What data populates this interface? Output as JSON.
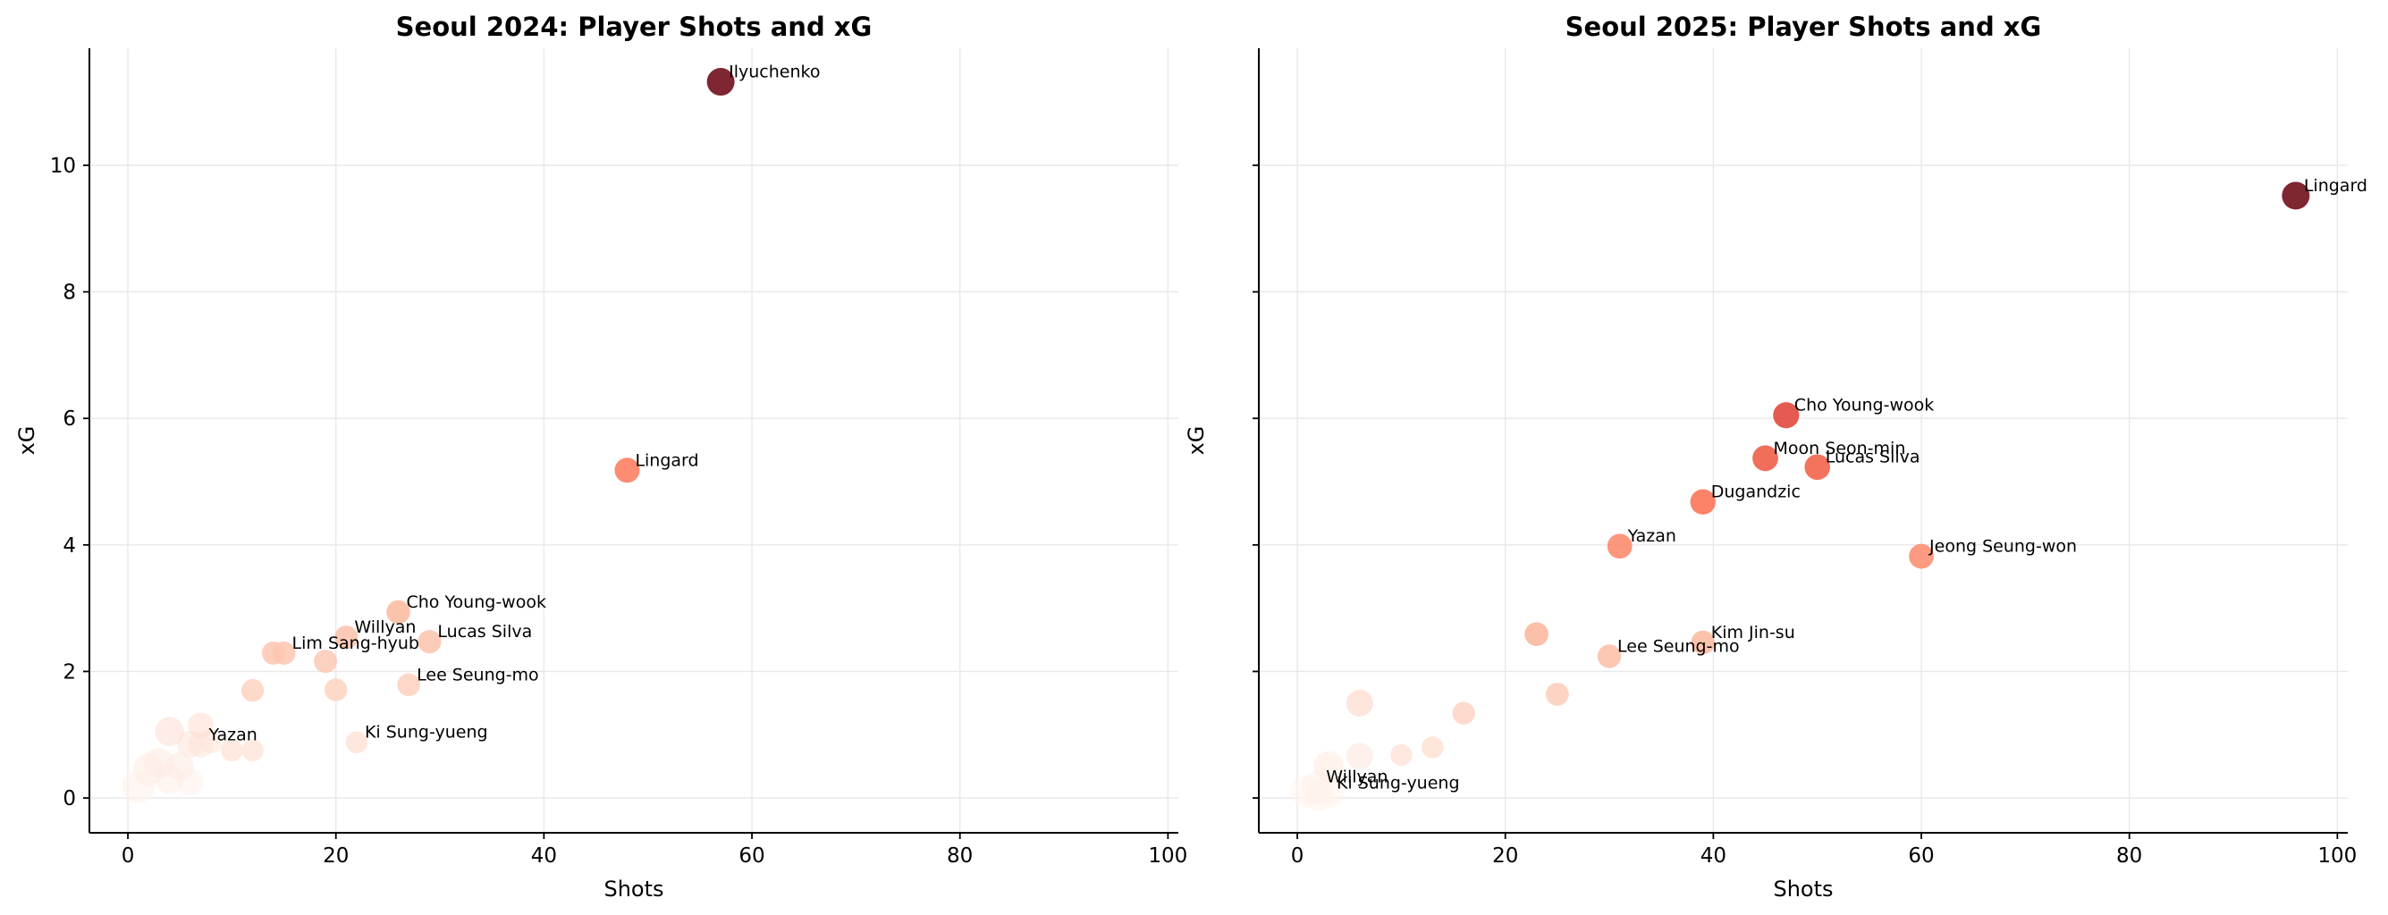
{
  "chart_data": [
    {
      "type": "scatter",
      "title": "Seoul 2024: Player Shots and xG",
      "xlabel": "Shots",
      "ylabel": "xG",
      "xlim": [
        -3.7,
        101
      ],
      "ylim": [
        -0.55,
        11.85
      ],
      "xticks": [
        0,
        20,
        40,
        60,
        80,
        100
      ],
      "yticks": [
        0,
        2,
        4,
        6,
        8,
        10
      ],
      "grid": true,
      "labeled_points": [
        {
          "name": "Ilyuchenko",
          "x": 57,
          "y": 11.32
        },
        {
          "name": "Lingard",
          "x": 48,
          "y": 5.18
        },
        {
          "name": "Cho Young-wook",
          "x": 26,
          "y": 2.94
        },
        {
          "name": "Willyan",
          "x": 21,
          "y": 2.54
        },
        {
          "name": "Lucas Silva",
          "x": 29,
          "y": 2.47
        },
        {
          "name": "Lim Sang-hyub",
          "x": 15,
          "y": 2.29
        },
        {
          "name": "Lee Seung-mo",
          "x": 27,
          "y": 1.79
        },
        {
          "name": "Ki Sung-yueng",
          "x": 22,
          "y": 0.88
        },
        {
          "name": "Yazan",
          "x": 7,
          "y": 0.84
        }
      ],
      "other_points": [
        {
          "x": 14,
          "y": 2.29
        },
        {
          "x": 19,
          "y": 2.16
        },
        {
          "x": 12,
          "y": 1.7
        },
        {
          "x": 20,
          "y": 1.71
        },
        {
          "x": 4,
          "y": 1.05
        },
        {
          "x": 7,
          "y": 1.15
        },
        {
          "x": 3,
          "y": 0.55
        },
        {
          "x": 5,
          "y": 0.5
        },
        {
          "x": 6,
          "y": 0.85
        },
        {
          "x": 10,
          "y": 0.75
        },
        {
          "x": 12,
          "y": 0.75
        },
        {
          "x": 2,
          "y": 0.45
        },
        {
          "x": 1,
          "y": 0.18
        },
        {
          "x": 6,
          "y": 0.25
        },
        {
          "x": 4,
          "y": 0.3
        },
        {
          "x": 8,
          "y": 0.9
        }
      ]
    },
    {
      "type": "scatter",
      "title": "Seoul 2025: Player Shots and xG",
      "xlabel": "Shots",
      "ylabel": "xG",
      "xlim": [
        -3.7,
        101
      ],
      "ylim": [
        -0.55,
        11.85
      ],
      "xticks": [
        0,
        20,
        40,
        60,
        80,
        100
      ],
      "yticks": [
        0,
        2,
        4,
        6,
        8,
        10
      ],
      "grid": true,
      "labeled_points": [
        {
          "name": "Lingard",
          "x": 96,
          "y": 9.52
        },
        {
          "name": "Cho Young-wook",
          "x": 47,
          "y": 6.05
        },
        {
          "name": "Moon Seon-min",
          "x": 45,
          "y": 5.37
        },
        {
          "name": "Lucas Silva",
          "x": 50,
          "y": 5.23
        },
        {
          "name": "Dugandzic",
          "x": 39,
          "y": 4.68
        },
        {
          "name": "Yazan",
          "x": 31,
          "y": 3.98
        },
        {
          "name": "Jeong Seung-won",
          "x": 60,
          "y": 3.82
        },
        {
          "name": "Kim Jin-su",
          "x": 39,
          "y": 2.46
        },
        {
          "name": "Lee Seung-mo",
          "x": 30,
          "y": 2.24
        },
        {
          "name": "Willyan",
          "x": 2,
          "y": 0.18
        },
        {
          "name": "Ki Sung-yueng",
          "x": 3,
          "y": 0.08
        }
      ],
      "other_points": [
        {
          "x": 23,
          "y": 2.59
        },
        {
          "x": 25,
          "y": 1.64
        },
        {
          "x": 16,
          "y": 1.34
        },
        {
          "x": 6,
          "y": 1.5
        },
        {
          "x": 13,
          "y": 0.8
        },
        {
          "x": 10,
          "y": 0.68
        },
        {
          "x": 6,
          "y": 0.66
        },
        {
          "x": 3,
          "y": 0.5
        },
        {
          "x": 1,
          "y": 0.1
        },
        {
          "x": 2,
          "y": 0.05
        }
      ]
    }
  ]
}
